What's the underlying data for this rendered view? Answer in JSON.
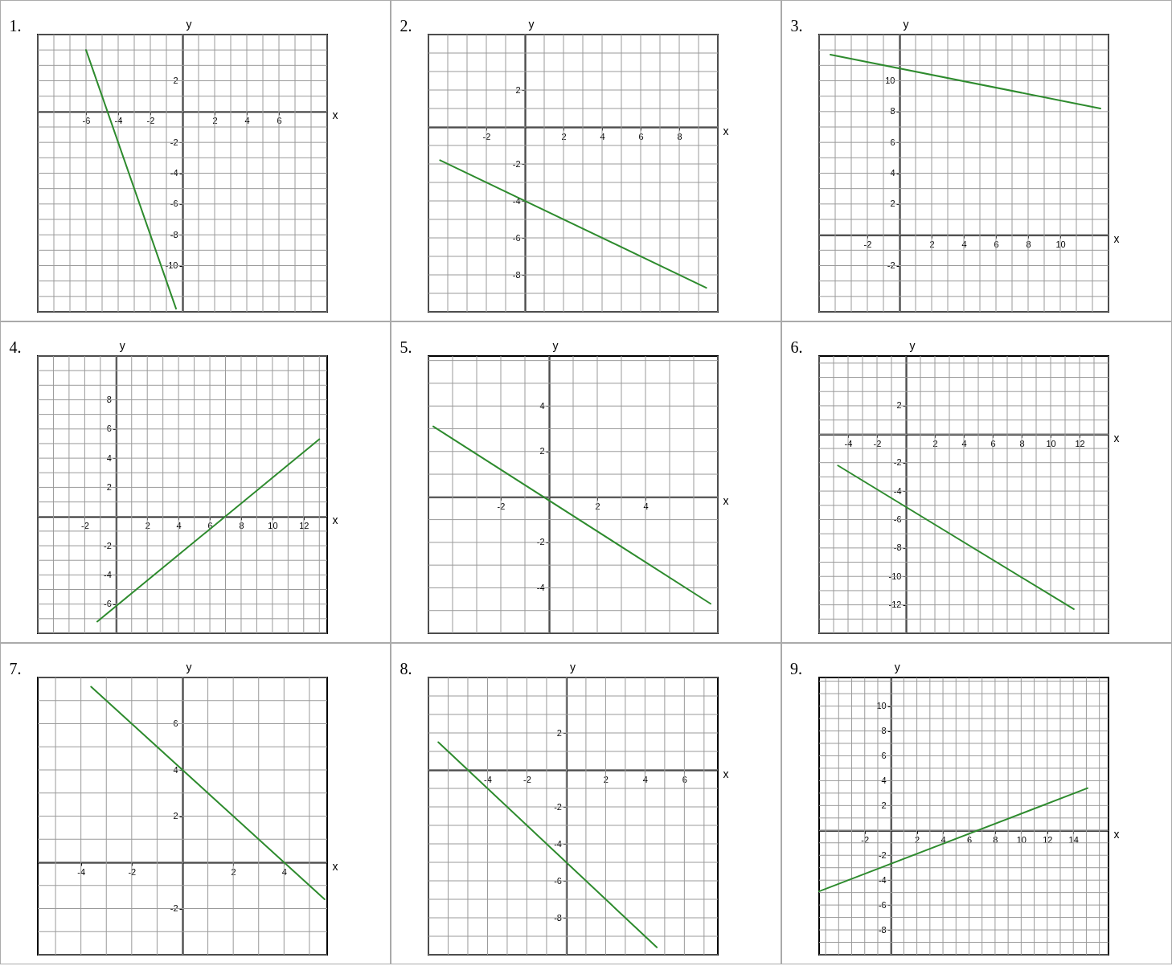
{
  "chart_data": [
    {
      "type": "line",
      "title": "1.",
      "xlabel": "x",
      "ylabel": "y",
      "grid": true,
      "xlim": [
        -9,
        9
      ],
      "ylim": [
        -13,
        5
      ],
      "xticks": [
        {
          "value": -9,
          "label": null
        },
        {
          "value": -8,
          "label": null
        },
        {
          "value": -7,
          "label": null
        },
        -6,
        {
          "value": -5,
          "label": null
        },
        -4,
        {
          "value": -3,
          "label": null
        },
        -2,
        {
          "value": -1,
          "label": null
        },
        {
          "value": 0,
          "label": null
        },
        {
          "value": 1,
          "label": null
        },
        2,
        {
          "value": 3,
          "label": null
        },
        4,
        {
          "value": 5,
          "label": null
        },
        6,
        {
          "value": 7,
          "label": null
        },
        {
          "value": 8,
          "label": null
        },
        {
          "value": 9,
          "label": null
        }
      ],
      "yticks": [
        {
          "value": -13,
          "label": null
        },
        {
          "value": -12,
          "label": null
        },
        {
          "value": -11,
          "label": null
        },
        -10,
        {
          "value": -9,
          "label": null
        },
        -8,
        {
          "value": -7,
          "label": null
        },
        -6,
        {
          "value": -5,
          "label": null
        },
        -4,
        {
          "value": -3,
          "label": null
        },
        -2,
        {
          "value": -1,
          "label": null
        },
        {
          "value": 0,
          "label": null
        },
        {
          "value": 1,
          "label": null
        },
        2,
        {
          "value": 3,
          "label": null
        },
        {
          "value": 4,
          "label": null
        },
        {
          "value": 5,
          "label": null
        }
      ],
      "x": [
        -6,
        -0.4
      ],
      "series": [
        {
          "color": "#2e8b2e",
          "values": [
            4,
            -12.8
          ]
        }
      ]
    },
    {
      "type": "line",
      "title": "2.",
      "xlabel": "x",
      "ylabel": "y",
      "grid": true,
      "xlim": [
        -5,
        10
      ],
      "ylim": [
        -10,
        5
      ],
      "xticks": [
        {
          "value": -5,
          "label": null
        },
        {
          "value": -4,
          "label": null
        },
        {
          "value": -3,
          "label": null
        },
        -2,
        {
          "value": -1,
          "label": null
        },
        {
          "value": 0,
          "label": null
        },
        {
          "value": 1,
          "label": null
        },
        2,
        {
          "value": 3,
          "label": null
        },
        4,
        {
          "value": 5,
          "label": null
        },
        6,
        {
          "value": 7,
          "label": null
        },
        8,
        {
          "value": 9,
          "label": null
        },
        {
          "value": 10,
          "label": null
        }
      ],
      "yticks": [
        {
          "value": -10,
          "label": null
        },
        {
          "value": -9,
          "label": null
        },
        -8,
        {
          "value": -7,
          "label": null
        },
        -6,
        {
          "value": -5,
          "label": null
        },
        -4,
        {
          "value": -3,
          "label": null
        },
        -2,
        {
          "value": -1,
          "label": null
        },
        {
          "value": 0,
          "label": null
        },
        {
          "value": 1,
          "label": null
        },
        2,
        {
          "value": 3,
          "label": null
        },
        {
          "value": 4,
          "label": null
        },
        {
          "value": 5,
          "label": null
        }
      ],
      "x": [
        -4.4,
        9.4
      ],
      "series": [
        {
          "color": "#2e8b2e",
          "values": [
            -1.8,
            -8.7
          ]
        }
      ]
    },
    {
      "type": "line",
      "title": "3.",
      "xlabel": "x",
      "ylabel": "y",
      "grid": true,
      "xlim": [
        -5,
        13
      ],
      "ylim": [
        -5,
        13
      ],
      "xticks": [
        {
          "value": -5,
          "label": null
        },
        {
          "value": -4,
          "label": null
        },
        {
          "value": -3,
          "label": null
        },
        -2,
        {
          "value": -1,
          "label": null
        },
        {
          "value": 0,
          "label": null
        },
        {
          "value": 1,
          "label": null
        },
        2,
        {
          "value": 3,
          "label": null
        },
        4,
        {
          "value": 5,
          "label": null
        },
        6,
        {
          "value": 7,
          "label": null
        },
        8,
        {
          "value": 9,
          "label": null
        },
        10,
        {
          "value": 11,
          "label": null
        },
        {
          "value": 12,
          "label": null
        },
        {
          "value": 13,
          "label": null
        }
      ],
      "yticks": [
        {
          "value": -5,
          "label": null
        },
        {
          "value": -4,
          "label": null
        },
        {
          "value": -3,
          "label": null
        },
        -2,
        {
          "value": -1,
          "label": null
        },
        {
          "value": 0,
          "label": null
        },
        {
          "value": 1,
          "label": null
        },
        2,
        {
          "value": 3,
          "label": null
        },
        4,
        {
          "value": 5,
          "label": null
        },
        6,
        {
          "value": 7,
          "label": null
        },
        8,
        {
          "value": 9,
          "label": null
        },
        10,
        {
          "value": 11,
          "label": null
        },
        {
          "value": 12,
          "label": null
        },
        {
          "value": 13,
          "label": null
        }
      ],
      "x": [
        -4.3,
        12.5
      ],
      "series": [
        {
          "color": "#2e8b2e",
          "values": [
            11.7,
            8.2
          ]
        }
      ]
    },
    {
      "type": "line",
      "title": "4.",
      "xlabel": "x",
      "ylabel": "y",
      "grid": true,
      "xlim": [
        -5,
        13.5
      ],
      "ylim": [
        -8,
        11
      ],
      "xticks": [
        {
          "value": -5,
          "label": null
        },
        {
          "value": -4,
          "label": null
        },
        {
          "value": -3,
          "label": null
        },
        -2,
        {
          "value": -1,
          "label": null
        },
        {
          "value": 0,
          "label": null
        },
        {
          "value": 1,
          "label": null
        },
        2,
        {
          "value": 3,
          "label": null
        },
        4,
        {
          "value": 5,
          "label": null
        },
        6,
        {
          "value": 7,
          "label": null
        },
        8,
        {
          "value": 9,
          "label": null
        },
        10,
        {
          "value": 11,
          "label": null
        },
        12,
        {
          "value": 13,
          "label": null
        }
      ],
      "yticks": [
        {
          "value": -8,
          "label": null
        },
        {
          "value": -7,
          "label": null
        },
        -6,
        {
          "value": -5,
          "label": null
        },
        -4,
        {
          "value": -3,
          "label": null
        },
        -2,
        {
          "value": -1,
          "label": null
        },
        {
          "value": 0,
          "label": null
        },
        {
          "value": 1,
          "label": null
        },
        2,
        {
          "value": 3,
          "label": null
        },
        4,
        {
          "value": 5,
          "label": null
        },
        6,
        {
          "value": 7,
          "label": null
        },
        8,
        {
          "value": 9,
          "label": null
        },
        {
          "value": 10,
          "label": null
        },
        {
          "value": 11,
          "label": null
        }
      ],
      "x": [
        -1.2,
        13
      ],
      "series": [
        {
          "color": "#2e8b2e",
          "values": [
            -7.2,
            5.3
          ]
        }
      ]
    },
    {
      "type": "line",
      "title": "5.",
      "xlabel": "x",
      "ylabel": "y",
      "grid": true,
      "xlim": [
        -5,
        7
      ],
      "ylim": [
        -6,
        6.2
      ],
      "xticks": [
        {
          "value": -5,
          "label": null
        },
        {
          "value": -4,
          "label": null
        },
        {
          "value": -3,
          "label": null
        },
        -2,
        {
          "value": -1,
          "label": null
        },
        {
          "value": 0,
          "label": null
        },
        {
          "value": 1,
          "label": null
        },
        2,
        {
          "value": 3,
          "label": null
        },
        4,
        {
          "value": 5,
          "label": null
        },
        {
          "value": 6,
          "label": null
        },
        {
          "value": 7,
          "label": null
        }
      ],
      "yticks": [
        {
          "value": -6,
          "label": null
        },
        {
          "value": -5,
          "label": null
        },
        -4,
        {
          "value": -3,
          "label": null
        },
        -2,
        {
          "value": -1,
          "label": null
        },
        {
          "value": 0,
          "label": null
        },
        {
          "value": 1,
          "label": null
        },
        2,
        {
          "value": 3,
          "label": null
        },
        4,
        {
          "value": 5,
          "label": null
        },
        {
          "value": 6,
          "label": null
        }
      ],
      "x": [
        -4.8,
        6.7
      ],
      "series": [
        {
          "color": "#2e8b2e",
          "values": [
            3.1,
            -4.7
          ]
        }
      ]
    },
    {
      "type": "line",
      "title": "6.",
      "xlabel": "x",
      "ylabel": "y",
      "grid": true,
      "xlim": [
        -6,
        14
      ],
      "ylim": [
        -14,
        5.5
      ],
      "xticks": [
        {
          "value": -6,
          "label": null
        },
        {
          "value": -5,
          "label": null
        },
        -4,
        {
          "value": -3,
          "label": null
        },
        -2,
        {
          "value": -1,
          "label": null
        },
        {
          "value": 0,
          "label": null
        },
        {
          "value": 1,
          "label": null
        },
        2,
        {
          "value": 3,
          "label": null
        },
        4,
        {
          "value": 5,
          "label": null
        },
        6,
        {
          "value": 7,
          "label": null
        },
        8,
        {
          "value": 9,
          "label": null
        },
        10,
        {
          "value": 11,
          "label": null
        },
        12,
        {
          "value": 13,
          "label": null
        },
        {
          "value": 14,
          "label": null
        }
      ],
      "yticks": [
        {
          "value": -14,
          "label": null
        },
        {
          "value": -13,
          "label": null
        },
        -12,
        {
          "value": -11,
          "label": null
        },
        -10,
        {
          "value": -9,
          "label": null
        },
        -8,
        {
          "value": -7,
          "label": null
        },
        -6,
        {
          "value": -5,
          "label": null
        },
        -4,
        {
          "value": -3,
          "label": null
        },
        -2,
        {
          "value": -1,
          "label": null
        },
        {
          "value": 0,
          "label": null
        },
        {
          "value": 1,
          "label": null
        },
        2,
        {
          "value": 3,
          "label": null
        },
        {
          "value": 4,
          "label": null
        },
        {
          "value": 5,
          "label": null
        }
      ],
      "x": [
        -4.7,
        11.6
      ],
      "series": [
        {
          "color": "#2e8b2e",
          "values": [
            -2.2,
            -12.3
          ]
        }
      ]
    },
    {
      "type": "line",
      "title": "7.",
      "xlabel": "x",
      "ylabel": "y",
      "grid": true,
      "xlim": [
        -5.7,
        5.7
      ],
      "ylim": [
        -4,
        8
      ],
      "xticks": [
        {
          "value": -5,
          "label": null
        },
        -4,
        {
          "value": -3,
          "label": null
        },
        -2,
        {
          "value": -1,
          "label": null
        },
        {
          "value": 0,
          "label": null
        },
        {
          "value": 1,
          "label": null
        },
        2,
        {
          "value": 3,
          "label": null
        },
        4,
        {
          "value": 5,
          "label": null
        }
      ],
      "yticks": [
        {
          "value": -4,
          "label": null
        },
        {
          "value": -3,
          "label": null
        },
        -2,
        {
          "value": -1,
          "label": null
        },
        {
          "value": 0,
          "label": null
        },
        {
          "value": 1,
          "label": null
        },
        2,
        {
          "value": 3,
          "label": null
        },
        4,
        {
          "value": 5,
          "label": null
        },
        6,
        {
          "value": 7,
          "label": null
        },
        {
          "value": 8,
          "label": null
        }
      ],
      "x": [
        -3.6,
        5.6
      ],
      "series": [
        {
          "color": "#2e8b2e",
          "values": [
            7.6,
            -1.6
          ]
        }
      ]
    },
    {
      "type": "line",
      "title": "8.",
      "xlabel": "x",
      "ylabel": "y",
      "grid": true,
      "xlim": [
        -7,
        7.7
      ],
      "ylim": [
        -10,
        5
      ],
      "xticks": [
        {
          "value": -7,
          "label": null
        },
        {
          "value": -6,
          "label": null
        },
        {
          "value": -5,
          "label": null
        },
        -4,
        {
          "value": -3,
          "label": null
        },
        -2,
        {
          "value": -1,
          "label": null
        },
        {
          "value": 0,
          "label": null
        },
        {
          "value": 1,
          "label": null
        },
        2,
        {
          "value": 3,
          "label": null
        },
        4,
        {
          "value": 5,
          "label": null
        },
        6,
        {
          "value": 7,
          "label": null
        }
      ],
      "yticks": [
        {
          "value": -10,
          "label": null
        },
        {
          "value": -9,
          "label": null
        },
        -8,
        {
          "value": -7,
          "label": null
        },
        -6,
        {
          "value": -5,
          "label": null
        },
        -4,
        {
          "value": -3,
          "label": null
        },
        -2,
        {
          "value": -1,
          "label": null
        },
        {
          "value": 0,
          "label": null
        },
        {
          "value": 1,
          "label": null
        },
        2,
        {
          "value": 3,
          "label": null
        },
        {
          "value": 4,
          "label": null
        },
        {
          "value": 5,
          "label": null
        }
      ],
      "x": [
        -6.5,
        4.6
      ],
      "series": [
        {
          "color": "#2e8b2e",
          "values": [
            1.5,
            -9.6
          ]
        }
      ]
    },
    {
      "type": "line",
      "title": "9.",
      "xlabel": "x",
      "ylabel": "y",
      "grid": true,
      "xlim": [
        -5.5,
        16.7
      ],
      "ylim": [
        -10,
        12.3
      ],
      "xticks": [
        {
          "value": -5,
          "label": null
        },
        {
          "value": -4,
          "label": null
        },
        {
          "value": -3,
          "label": null
        },
        -2,
        {
          "value": -1,
          "label": null
        },
        {
          "value": 0,
          "label": null
        },
        {
          "value": 1,
          "label": null
        },
        2,
        {
          "value": 3,
          "label": null
        },
        4,
        {
          "value": 5,
          "label": null
        },
        6,
        {
          "value": 7,
          "label": null
        },
        8,
        {
          "value": 9,
          "label": null
        },
        10,
        {
          "value": 11,
          "label": null
        },
        12,
        {
          "value": 13,
          "label": null
        },
        14,
        {
          "value": 15,
          "label": null
        },
        {
          "value": 16,
          "label": null
        }
      ],
      "yticks": [
        {
          "value": -10,
          "label": null
        },
        {
          "value": -9,
          "label": null
        },
        -8,
        {
          "value": -7,
          "label": null
        },
        -6,
        {
          "value": -5,
          "label": null
        },
        -4,
        {
          "value": -3,
          "label": null
        },
        -2,
        {
          "value": -1,
          "label": null
        },
        {
          "value": 0,
          "label": null
        },
        {
          "value": 1,
          "label": null
        },
        2,
        {
          "value": 3,
          "label": null
        },
        4,
        {
          "value": 5,
          "label": null
        },
        6,
        {
          "value": 7,
          "label": null
        },
        8,
        {
          "value": 9,
          "label": null
        },
        10,
        {
          "value": 11,
          "label": null
        },
        {
          "value": 12,
          "label": null
        }
      ],
      "x": [
        -5.5,
        15.1
      ],
      "series": [
        {
          "color": "#2e8b2e",
          "values": [
            -4.9,
            3.4
          ]
        }
      ]
    }
  ]
}
